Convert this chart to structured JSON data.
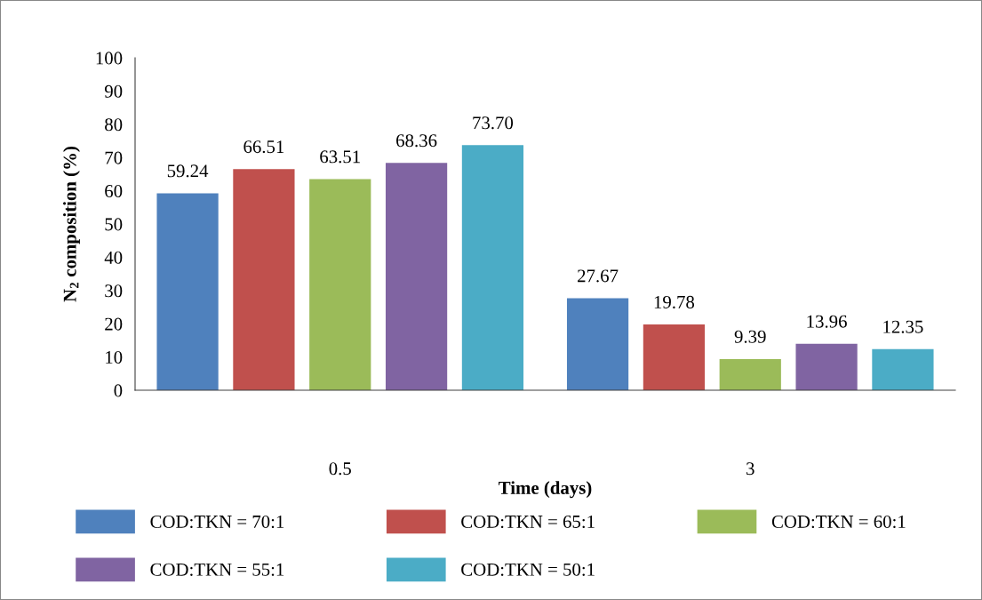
{
  "chart_data": {
    "type": "bar",
    "xlabel": "Time (days)",
    "ylabel": "N$_{2}$ composition (%)",
    "categories": [
      "0.5",
      "3"
    ],
    "series": [
      {
        "name": "COD:TKN = 70:1",
        "color": "#4f81bd",
        "values": [
          59.24,
          27.67
        ],
        "value_labels": [
          "59.24",
          "27.67"
        ]
      },
      {
        "name": "COD:TKN = 65:1",
        "color": "#c0504d",
        "values": [
          66.51,
          19.78
        ],
        "value_labels": [
          "66.51",
          "19.78"
        ]
      },
      {
        "name": "COD:TKN = 60:1",
        "color": "#9bbb59",
        "values": [
          63.51,
          9.39
        ],
        "value_labels": [
          "63.51",
          "9.39"
        ]
      },
      {
        "name": "COD:TKN = 55:1",
        "color": "#8064a2",
        "values": [
          68.36,
          13.96
        ],
        "value_labels": [
          "68.36",
          "13.96"
        ]
      },
      {
        "name": "COD:TKN = 50:1",
        "color": "#4bacc6",
        "values": [
          73.7,
          12.35
        ],
        "value_labels": [
          "73.70",
          "12.35"
        ]
      }
    ],
    "ylim": [
      0,
      100
    ],
    "yticks": [
      0,
      10,
      20,
      30,
      40,
      50,
      60,
      70,
      80,
      90,
      100
    ],
    "grid": false,
    "legend": "bottom"
  }
}
